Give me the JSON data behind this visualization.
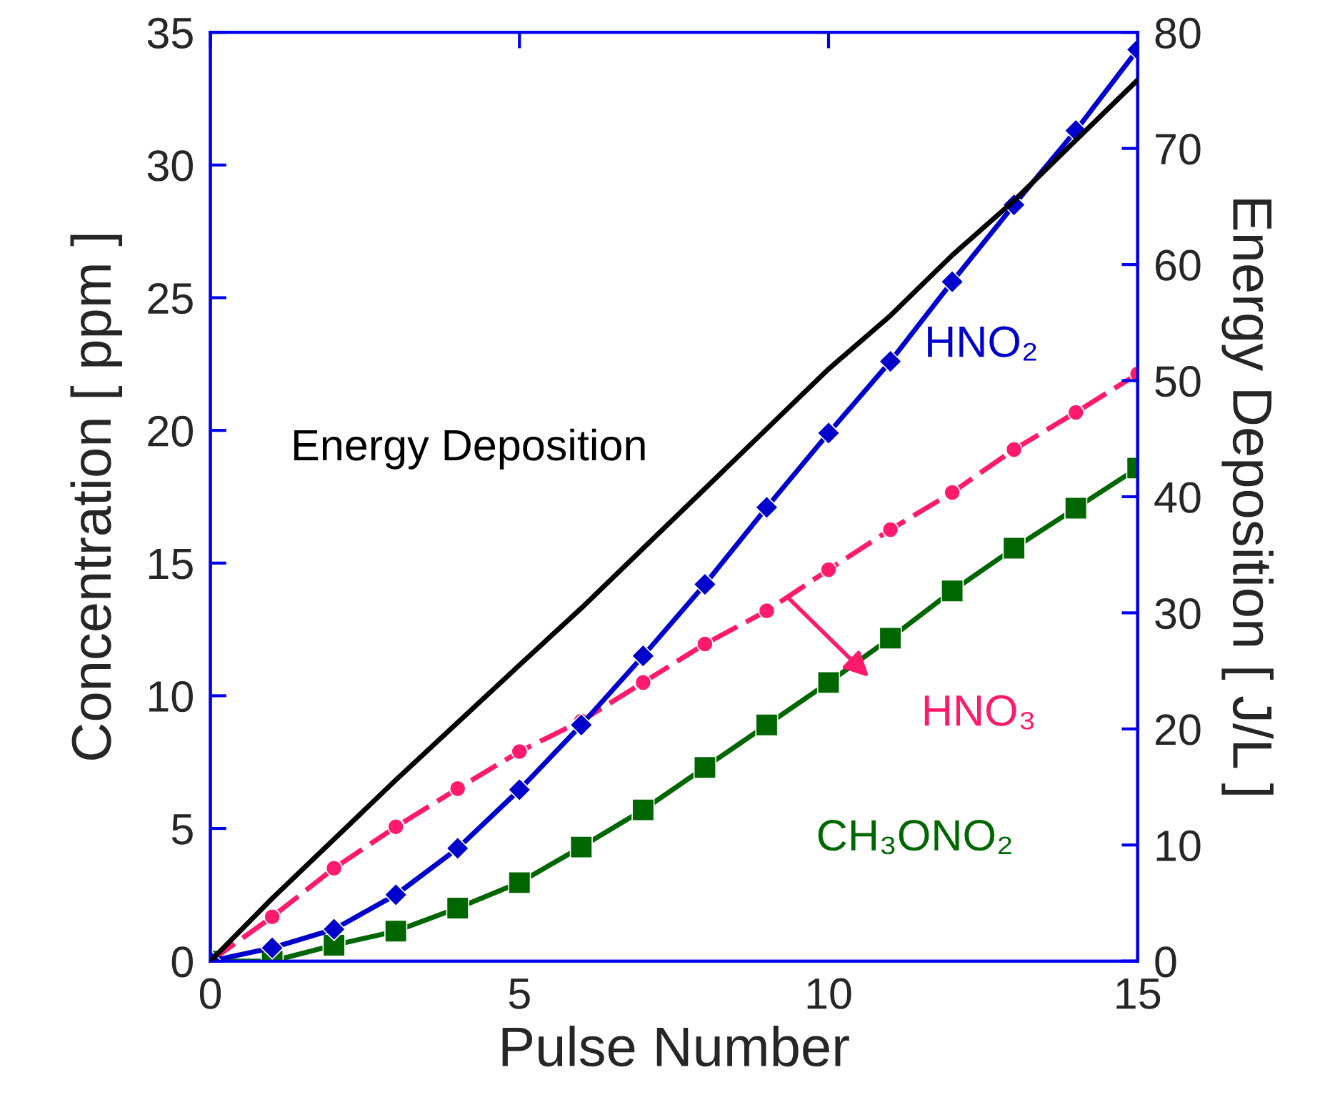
{
  "chart_data": {
    "type": "line",
    "xlabel": "Pulse Number",
    "ylabel": "Concentration [ ppm ]",
    "y2label": "Energy Deposition [ J/L ]",
    "xlim": [
      0,
      15
    ],
    "xticks": [
      0,
      5,
      10,
      15
    ],
    "ylim": [
      0,
      35
    ],
    "yticks": [
      0,
      5,
      10,
      15,
      20,
      25,
      30,
      35
    ],
    "y2lim": [
      0,
      80
    ],
    "y2ticks": [
      0,
      10,
      20,
      30,
      40,
      50,
      60,
      70,
      80
    ],
    "grid": false,
    "legend": false,
    "x": [
      0,
      1,
      2,
      3,
      4,
      5,
      6,
      7,
      8,
      9,
      10,
      11,
      12,
      13,
      14,
      15
    ],
    "series": [
      {
        "name": "HNO₂",
        "color": "#0000cc",
        "marker": "diamond",
        "values": [
          0,
          0.5,
          1.2,
          2.5,
          4.25,
          6.46,
          8.9,
          11.5,
          14.2,
          17.1,
          19.9,
          22.6,
          25.6,
          28.5,
          31.3,
          34.35
        ]
      },
      {
        "name": "HNO₃",
        "color": "#ff1a6e",
        "marker": "circle",
        "line_style": "dashed",
        "values": [
          0,
          1.67,
          3.5,
          5.06,
          6.5,
          7.9,
          9.05,
          10.5,
          11.95,
          13.2,
          14.75,
          16.26,
          17.66,
          19.28,
          20.68,
          22.13
        ]
      },
      {
        "name": "CH₃ONO₂",
        "color": "#006600",
        "marker": "square",
        "values": [
          0,
          0,
          0.6,
          1.13,
          2.0,
          2.96,
          4.3,
          5.7,
          7.3,
          8.9,
          10.5,
          12.17,
          13.95,
          15.56,
          17.07,
          18.58
        ]
      },
      {
        "name": "Energy Deposition",
        "color": "#000000",
        "marker": "none",
        "axis": "y2",
        "x": [
          0,
          1,
          3,
          5,
          6,
          10,
          11,
          12,
          13,
          15
        ],
        "values": [
          0,
          5.4,
          15.6,
          25.5,
          30.4,
          51,
          55.6,
          60.8,
          65.5,
          75.9
        ]
      }
    ]
  }
}
